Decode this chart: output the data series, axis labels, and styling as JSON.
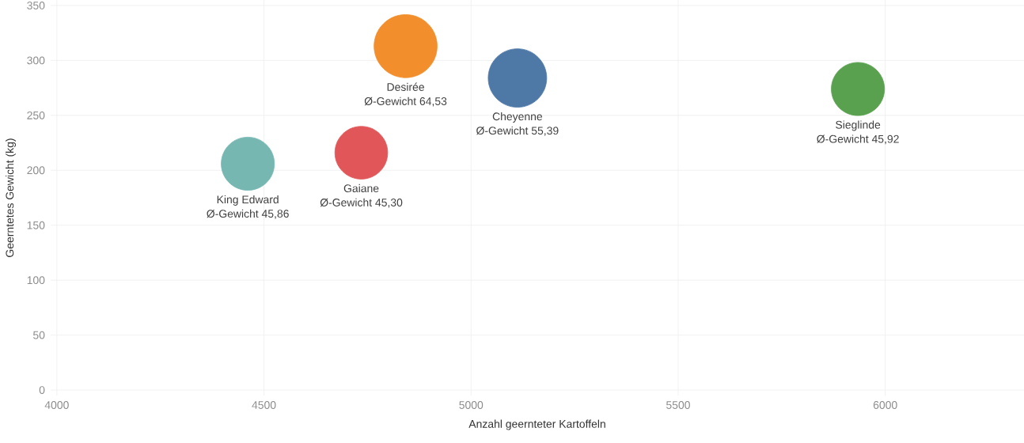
{
  "chart_data": {
    "type": "bubble",
    "xlabel": "Anzahl geernteter Kartoffeln",
    "ylabel": "Geerntetes Gewicht (kg)",
    "xlim": [
      3985,
      6335
    ],
    "xticks": [
      4000,
      4500,
      5000,
      5500,
      6000
    ],
    "ylim": [
      -5,
      355
    ],
    "yticks": [
      0,
      50,
      100,
      150,
      200,
      250,
      300,
      350
    ],
    "grid": true,
    "series": [
      {
        "name": "King Edward",
        "color": "#76b7b2",
        "x": [
          4461
        ],
        "values": [
          206
        ],
        "sizes": [
          0.71
        ],
        "value_labels": [
          "Ø-Gewicht 45,86"
        ]
      },
      {
        "name": "Gaiane",
        "color": "#e15759",
        "x": [
          4735
        ],
        "values": [
          216
        ],
        "sizes": [
          0.7
        ],
        "value_labels": [
          "Ø-Gewicht 45,30"
        ]
      },
      {
        "name": "Desirée",
        "color": "#f28e2b",
        "x": [
          4842
        ],
        "values": [
          313
        ],
        "sizes": [
          1
        ],
        "value_labels": [
          "Ø-Gewicht 64,53"
        ]
      },
      {
        "name": "Cheyenne",
        "color": "#4e79a7",
        "x": [
          5112
        ],
        "values": [
          284
        ],
        "sizes": [
          0.86
        ],
        "value_labels": [
          "Ø-Gewicht 55,39"
        ]
      },
      {
        "name": "Sieglinde",
        "color": "#59a14f",
        "x": [
          5934
        ],
        "values": [
          274
        ],
        "sizes": [
          0.71
        ],
        "value_labels": [
          "Ø-Gewicht 45,92"
        ]
      }
    ]
  }
}
